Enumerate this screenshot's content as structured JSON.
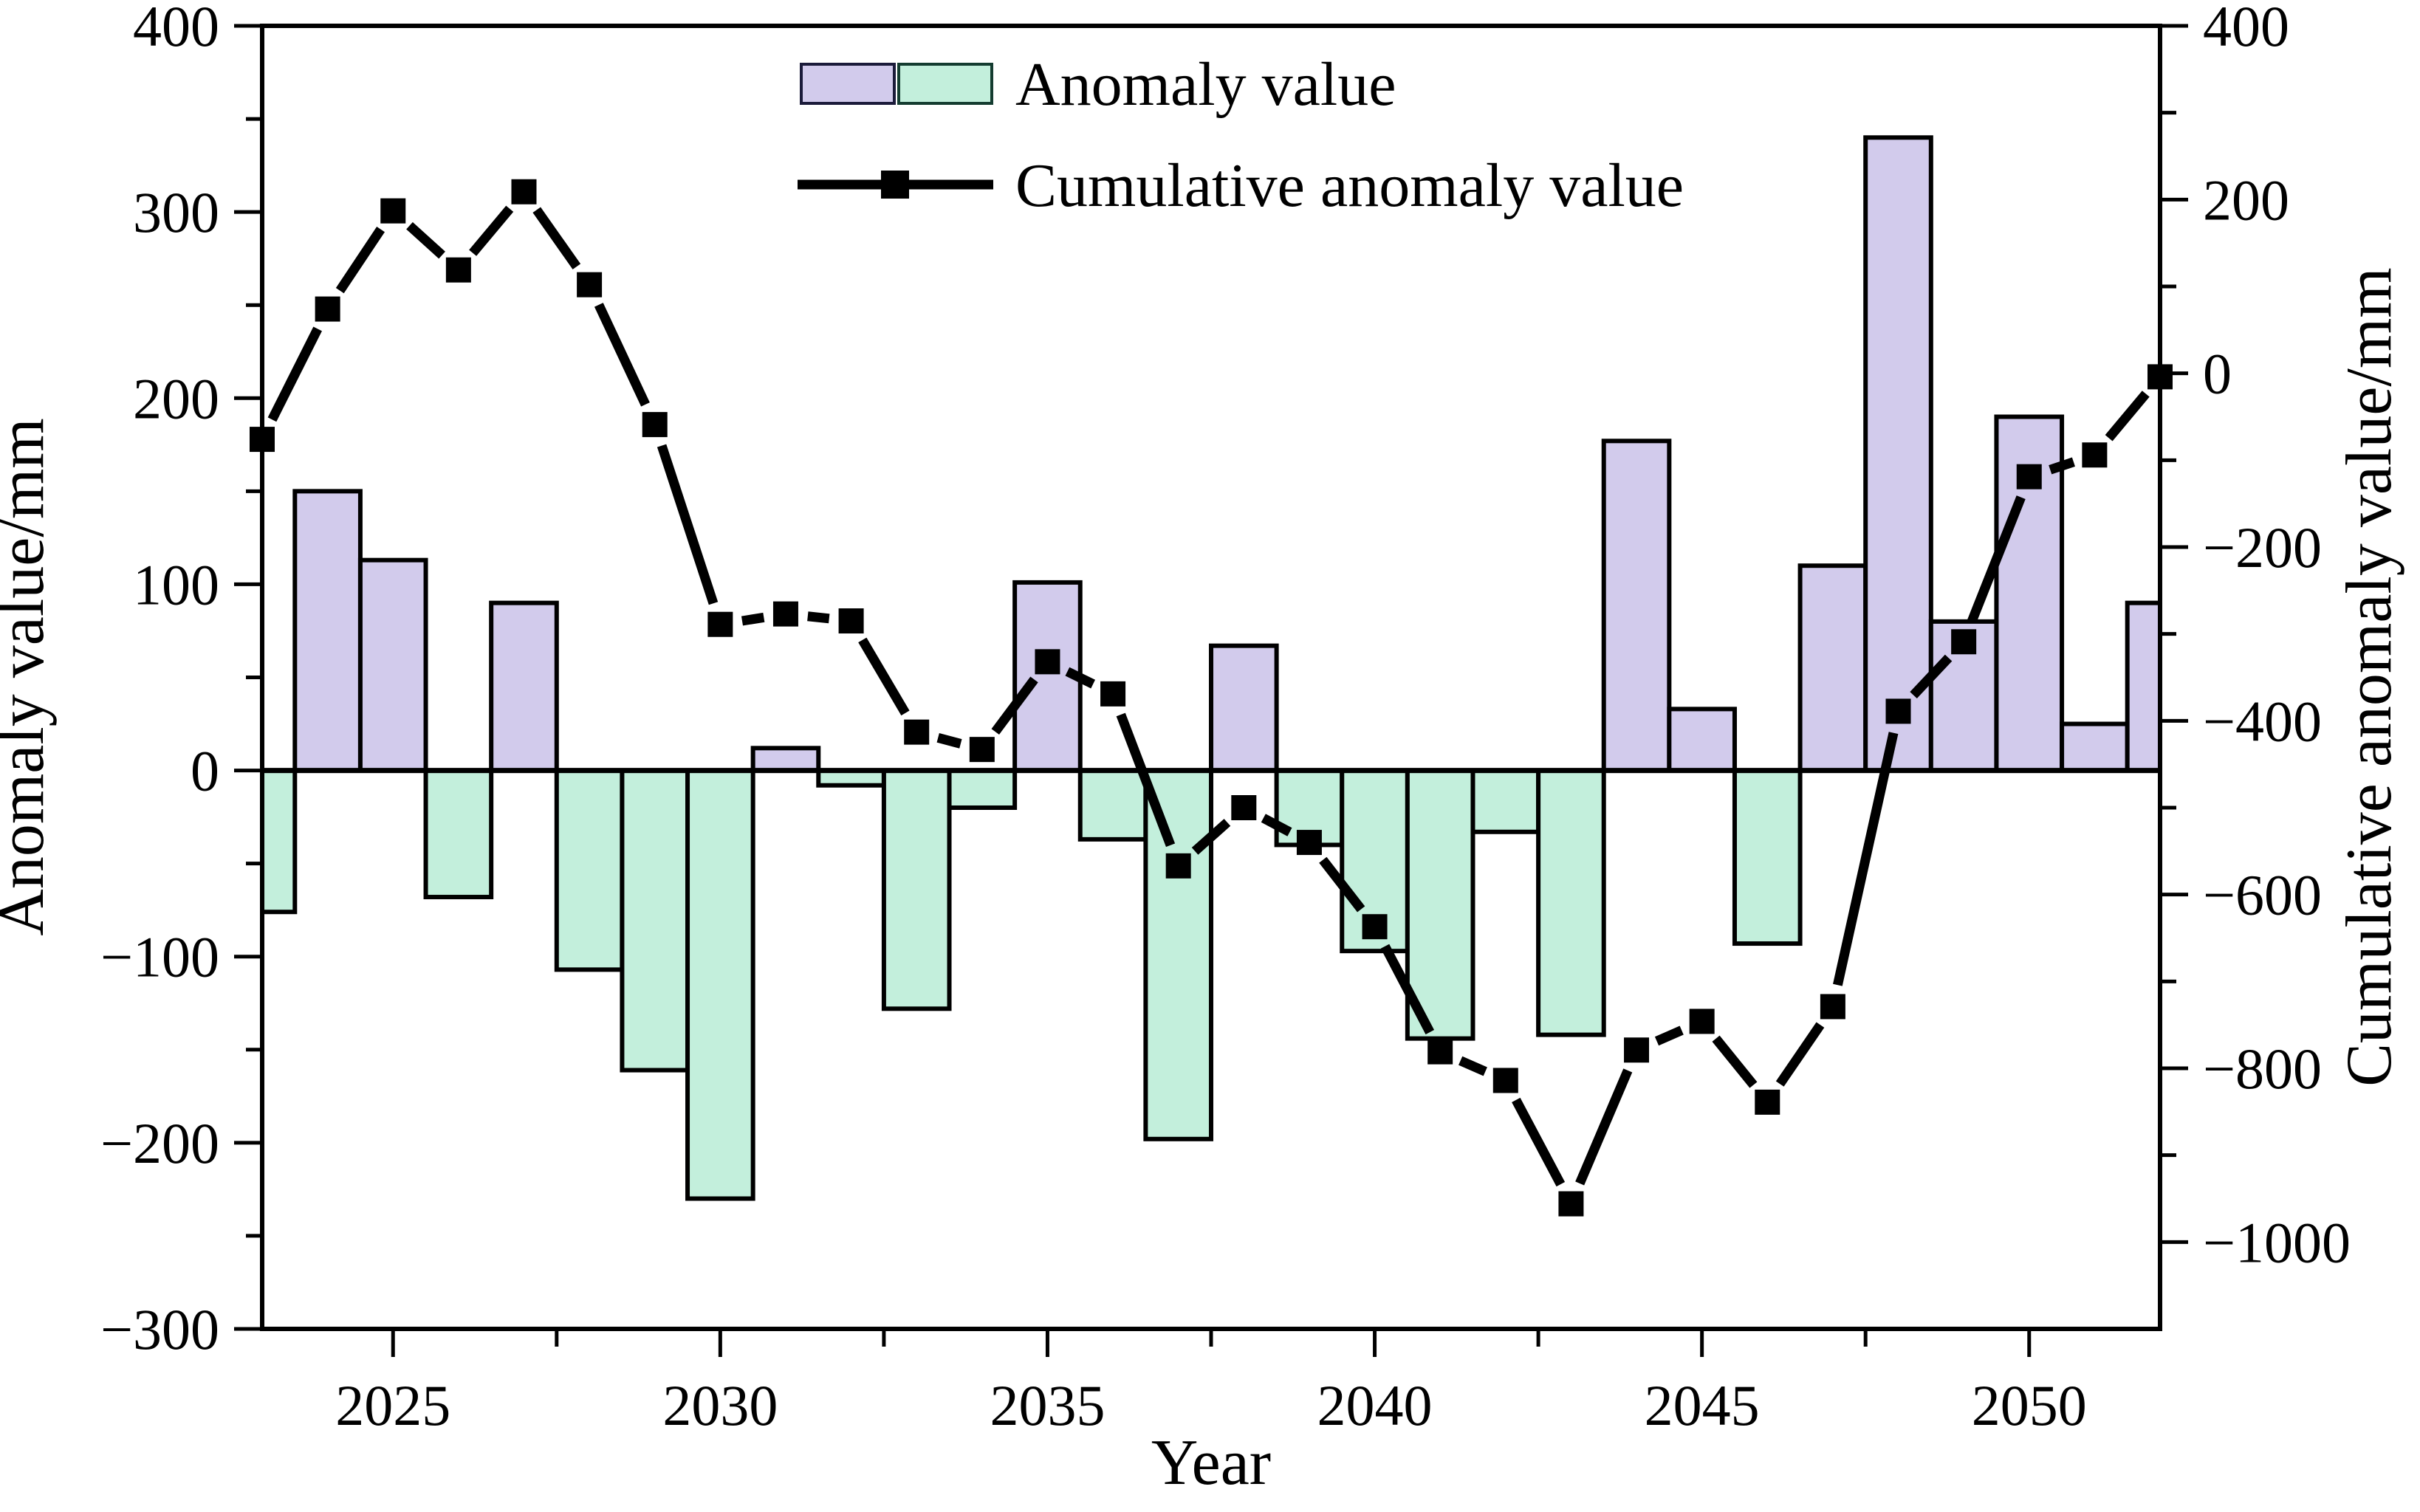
{
  "figure": {
    "background": "#ffffff",
    "legend": {
      "anomaly_label": "Anomaly value",
      "cumulative_label": "Cumulative anomaly value"
    },
    "x_axis": {
      "title": "Year"
    },
    "left_axis": {
      "title": "Anomaly value/mm"
    },
    "right_axis": {
      "title": "Cumulative anomaly value/mm"
    },
    "colors": {
      "bar_positive_fill": "#d2cbec",
      "bar_negative_fill": "#c3efdc",
      "bar_positive_border": "#1b1b3a",
      "bar_negative_border": "#143c30",
      "bar_outline": "#000000",
      "line_color": "#000000",
      "axis_color": "#000000"
    }
  },
  "chart_data": {
    "type": "bar",
    "subtype": "combo-bar-line",
    "title": "",
    "xlabel": "Year",
    "ylabel_left": "Anomaly value/mm",
    "ylabel_right": "Cumulative anomaly value/mm",
    "x": [
      2023,
      2024,
      2025,
      2026,
      2027,
      2028,
      2029,
      2030,
      2031,
      2032,
      2033,
      2034,
      2035,
      2036,
      2037,
      2038,
      2039,
      2040,
      2041,
      2042,
      2043,
      2044,
      2045,
      2046,
      2047,
      2048,
      2049,
      2050,
      2051,
      2052
    ],
    "series": [
      {
        "name": "Anomaly value",
        "type": "bar",
        "axis": "left",
        "values": [
          -76,
          150,
          113,
          -68,
          90,
          -107,
          -161,
          -230,
          12,
          -8,
          -128,
          -20,
          101,
          -37,
          -198,
          67,
          -40,
          -97,
          -144,
          -33,
          -142,
          177,
          33,
          -93,
          110,
          340,
          80,
          190,
          25,
          90
        ]
      },
      {
        "name": "Cumulative anomaly value",
        "type": "line",
        "axis": "right",
        "marker": "square",
        "values": [
          -76,
          74,
          187,
          119,
          209,
          102,
          -59,
          -289,
          -277,
          -285,
          -413,
          -433,
          -332,
          -369,
          -567,
          -500,
          -540,
          -637,
          -781,
          -814,
          -956,
          -779,
          -746,
          -839,
          -729,
          -389,
          -309,
          -119,
          -94,
          -4
        ]
      }
    ],
    "axes": {
      "x": {
        "range": [
          2023,
          2052
        ],
        "major_ticks": [
          2025,
          2030,
          2035,
          2040,
          2045,
          2050
        ],
        "minor_ticks": [
          2027.5,
          2032.5,
          2037.5,
          2042.5,
          2047.5
        ]
      },
      "left": {
        "range": [
          -300,
          400
        ],
        "major_ticks": [
          400,
          300,
          200,
          100,
          0,
          -100,
          -200,
          -300
        ],
        "minor_step": 50
      },
      "right": {
        "range": [
          -1100,
          400
        ],
        "major_ticks": [
          400,
          200,
          0,
          -200,
          -400,
          -600,
          -800,
          -1000
        ],
        "minor_step": 100
      }
    },
    "grid": false,
    "legend_position": "top-center-inside"
  }
}
